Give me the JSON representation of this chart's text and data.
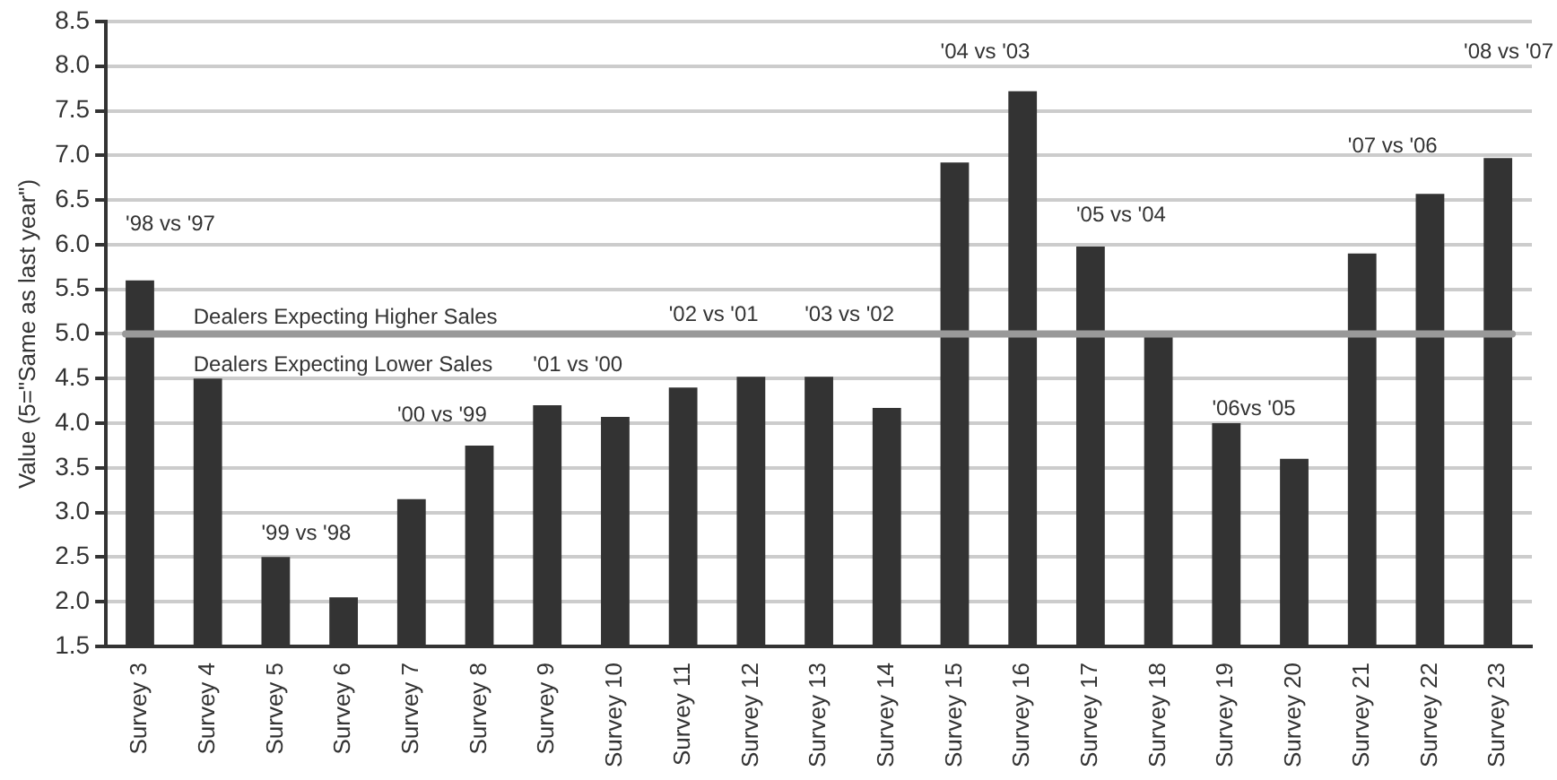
{
  "chart_data": {
    "type": "bar",
    "ylabel": "Value (5=\"Same as last year\")",
    "categories": [
      "Survey 3",
      "Survey 4",
      "Survey 5",
      "Survey 6",
      "Survey 7",
      "Survey 8",
      "Survey 9",
      "Survey 10",
      "Survey 11",
      "Survey 12",
      "Survey 13",
      "Survey 14",
      "Survey 15",
      "Survey 16",
      "Survey 17",
      "Survey 18",
      "Survey 19",
      "Survey 20",
      "Survey 21",
      "Survey 22",
      "Survey 23"
    ],
    "values": [
      5.6,
      4.5,
      2.5,
      2.05,
      3.15,
      3.75,
      4.2,
      4.07,
      4.4,
      4.52,
      4.52,
      4.17,
      6.92,
      7.72,
      5.98,
      4.97,
      4.0,
      3.6,
      5.9,
      6.57,
      6.97
    ],
    "color": "#333333",
    "ylim": [
      1.5,
      8.5
    ],
    "yticks": [
      {
        "value": 1.5,
        "label": "1.5"
      },
      {
        "value": 2,
        "label": "2.0"
      },
      {
        "value": 2.5,
        "label": "2.5"
      },
      {
        "value": 3,
        "label": "3.0"
      },
      {
        "value": 3.5,
        "label": "3.5"
      },
      {
        "value": 4,
        "label": "4.0"
      },
      {
        "value": 4.5,
        "label": "4.5"
      },
      {
        "value": 5,
        "label": "5.0"
      },
      {
        "value": 5.5,
        "label": "5.5"
      },
      {
        "value": 6,
        "label": "6.0"
      },
      {
        "value": 6.5,
        "label": "6.5"
      },
      {
        "value": 7,
        "label": "7.0"
      },
      {
        "value": 7.5,
        "label": "7.5"
      },
      {
        "value": 8,
        "label": "8.0"
      },
      {
        "value": 8.5,
        "label": "8.5"
      }
    ],
    "grid": "y",
    "legend": false,
    "ref_lines": [
      {
        "axis": "y",
        "value": 5,
        "label": "Dealers Expecting Higher Sales",
        "color": "#999999"
      }
    ],
    "annotations": [
      "Dealers Expecting Lower Sales",
      "'98 vs '97",
      "'99 vs '98",
      "'00 vs '99",
      "'01 vs '00",
      "'02 vs '01",
      "'03 vs '02",
      "'04 vs '03",
      "'05 vs '04",
      "'06vs '05",
      "'07 vs '06",
      "'08 vs '07"
    ]
  }
}
